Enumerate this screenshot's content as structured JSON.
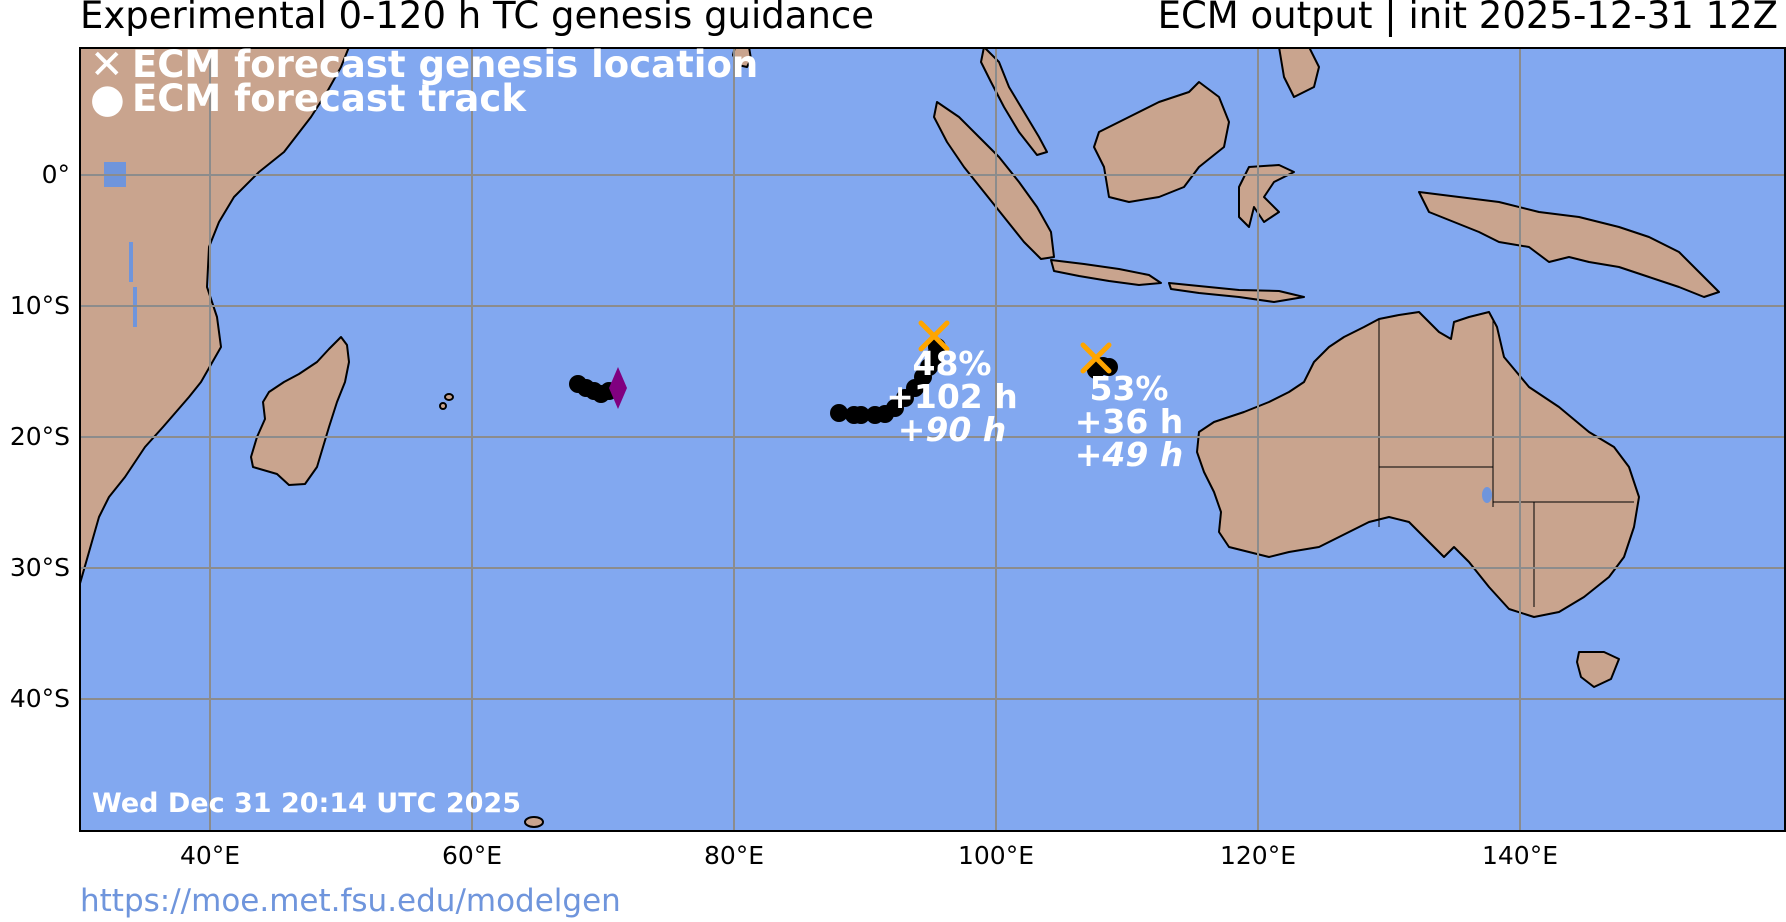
{
  "header": {
    "title_left": "Experimental 0-120 h TC genesis guidance",
    "title_right": "ECM output | init 2025-12-31 12Z"
  },
  "legend": {
    "genesis_label": "ECM forecast genesis location",
    "track_label": "ECM forecast track",
    "genesis_symbol": "x-marker-icon",
    "track_symbol": "dot-marker-icon"
  },
  "axes": {
    "lat_labels": [
      "0°",
      "10°S",
      "20°S",
      "30°S",
      "40°S"
    ],
    "lon_labels": [
      "40°E",
      "60°E",
      "80°E",
      "100°E",
      "120°E",
      "140°E"
    ]
  },
  "annotations": [
    {
      "prob": "48%",
      "lead": "+102 h",
      "duration": "+90 h"
    },
    {
      "prob": "53%",
      "lead": "+36 h",
      "duration": "+49 h"
    }
  ],
  "footer": {
    "timestamp": "Wed Dec 31 20:14 UTC 2025",
    "url": "https://moe.met.fsu.edu/modelgen"
  },
  "colors": {
    "ocean": "#82a8f0",
    "land": "#c9a48e",
    "genesis_marker": "#ffa500",
    "track": "#000000",
    "diamond": "#800080",
    "grid": "#8c8c8c"
  }
}
